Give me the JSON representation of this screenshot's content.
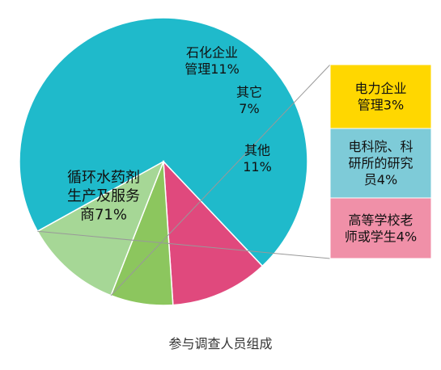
{
  "chart_data": {
    "type": "pie",
    "title": "参与调查人员组成",
    "slices": [
      {
        "lines": [
          "循环水药剂",
          "生产及服务",
          "商71%"
        ],
        "value": 71,
        "color": "#1fbacb"
      },
      {
        "lines": [
          "石化企业",
          "管理11%"
        ],
        "value": 11,
        "color": "#e0497d"
      },
      {
        "lines": [
          "其它",
          "7%"
        ],
        "value": 7,
        "color": "#8cc65e"
      },
      {
        "lines": [
          "其他",
          "11%"
        ],
        "value": 11,
        "color": "#a6d796",
        "breakdown": [
          {
            "lines": [
              "电力企业",
              "管理3%"
            ],
            "value": 3,
            "color": "#ffd700"
          },
          {
            "lines": [
              "电科院、科",
              "研所的研究",
              "员4%"
            ],
            "value": 4,
            "color": "#7ecbd8"
          },
          {
            "lines": [
              "高等学校老",
              "师或学生4%"
            ],
            "value": 4,
            "color": "#f090a8"
          }
        ]
      }
    ]
  }
}
